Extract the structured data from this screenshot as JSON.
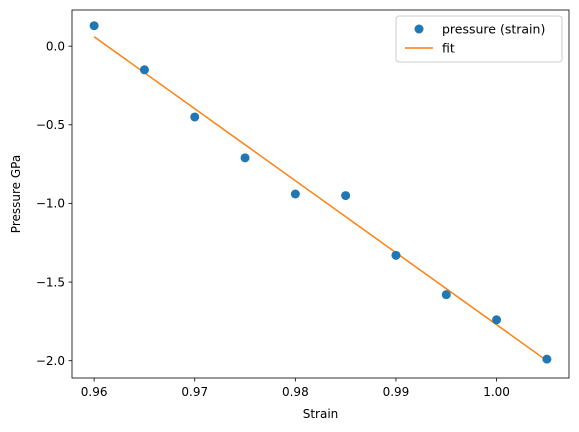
{
  "chart_data": {
    "type": "scatter",
    "title": "",
    "xlabel": "Strain",
    "ylabel": "Pressure GPa",
    "xlim": [
      0.9578,
      1.0072
    ],
    "ylim": [
      -2.11,
      0.23
    ],
    "xticks": [
      0.96,
      0.97,
      0.98,
      0.99,
      1.0
    ],
    "xtick_labels": [
      "0.96",
      "0.97",
      "0.98",
      "0.99",
      "1.00"
    ],
    "yticks": [
      0.0,
      -0.5,
      -1.0,
      -1.5,
      -2.0
    ],
    "ytick_labels": [
      "0.0",
      "−0.5",
      "−1.0",
      "−1.5",
      "−2.0"
    ],
    "grid": false,
    "legend_position": "top-right",
    "series": [
      {
        "name": "pressure (strain)",
        "kind": "scatter",
        "color": "#1f77b4",
        "x": [
          0.96,
          0.965,
          0.97,
          0.975,
          0.98,
          0.985,
          0.99,
          0.995,
          1.0,
          1.005
        ],
        "y": [
          0.13,
          -0.15,
          -0.45,
          -0.71,
          -0.94,
          -0.95,
          -1.33,
          -1.58,
          -1.74,
          -1.99
        ]
      },
      {
        "name": "fit",
        "kind": "line",
        "color": "#ff7f0e",
        "x": [
          0.96,
          1.005
        ],
        "y": [
          0.06,
          -2.0
        ]
      }
    ]
  }
}
